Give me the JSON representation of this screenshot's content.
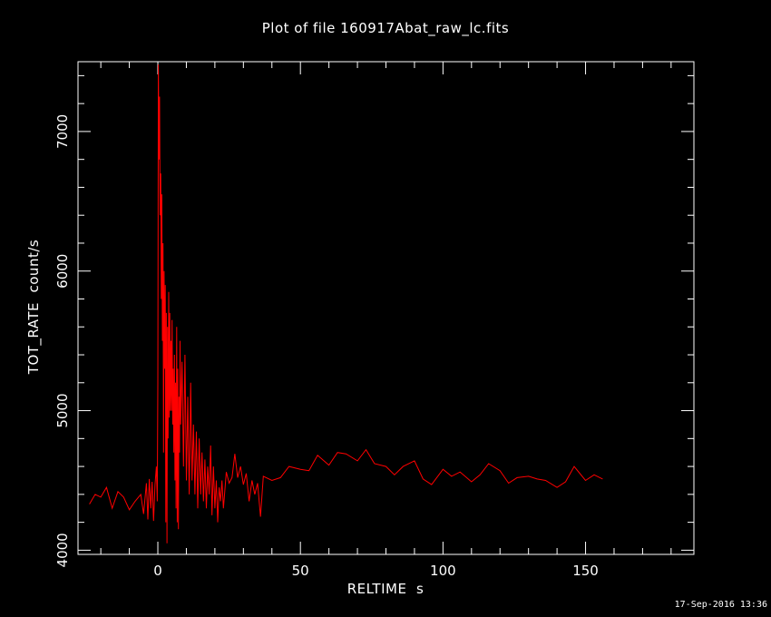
{
  "chart_data": {
    "type": "line",
    "title": "Plot of file 160917Abat_raw_lc.fits",
    "xlabel": "RELTIME  s",
    "ylabel": "TOT_RATE  count/s",
    "xlim": [
      -28,
      188
    ],
    "ylim": [
      3970,
      7500
    ],
    "x_ticks": [
      "0",
      "50",
      "100",
      "150"
    ],
    "y_ticks": [
      "4000",
      "5000",
      "6000",
      "7000"
    ],
    "line_color": "#ff0000",
    "series": [
      {
        "points": [
          [
            -24,
            4330
          ],
          [
            -22,
            4400
          ],
          [
            -20,
            4380
          ],
          [
            -18,
            4450
          ],
          [
            -16,
            4300
          ],
          [
            -14,
            4420
          ],
          [
            -12,
            4380
          ],
          [
            -10,
            4290
          ],
          [
            -8,
            4350
          ],
          [
            -6,
            4400
          ],
          [
            -5,
            4260
          ],
          [
            -4,
            4480
          ],
          [
            -3.5,
            4220
          ],
          [
            -3,
            4510
          ],
          [
            -2.5,
            4300
          ],
          [
            -2,
            4490
          ],
          [
            -1.5,
            4210
          ],
          [
            -1,
            4470
          ],
          [
            -0.5,
            4600
          ],
          [
            -0.2,
            4350
          ],
          [
            0,
            5200
          ],
          [
            0.2,
            7480
          ],
          [
            0.4,
            6800
          ],
          [
            0.6,
            7250
          ],
          [
            0.8,
            6400
          ],
          [
            1.0,
            6700
          ],
          [
            1.2,
            5800
          ],
          [
            1.4,
            6550
          ],
          [
            1.6,
            5500
          ],
          [
            1.8,
            6200
          ],
          [
            2.0,
            4700
          ],
          [
            2.2,
            6000
          ],
          [
            2.4,
            5300
          ],
          [
            2.6,
            5900
          ],
          [
            2.8,
            4200
          ],
          [
            3.0,
            5700
          ],
          [
            3.2,
            4050
          ],
          [
            3.4,
            5600
          ],
          [
            3.6,
            4800
          ],
          [
            3.8,
            5850
          ],
          [
            4.0,
            4950
          ],
          [
            4.2,
            5700
          ],
          [
            4.4,
            5000
          ],
          [
            4.6,
            5500
          ],
          [
            4.8,
            5000
          ],
          [
            5.0,
            5650
          ],
          [
            5.2,
            4900
          ],
          [
            5.4,
            5300
          ],
          [
            5.6,
            4700
          ],
          [
            5.8,
            5400
          ],
          [
            6.0,
            4500
          ],
          [
            6.2,
            5200
          ],
          [
            6.4,
            4300
          ],
          [
            6.6,
            5600
          ],
          [
            6.8,
            4200
          ],
          [
            7.0,
            5300
          ],
          [
            7.2,
            4150
          ],
          [
            7.4,
            5100
          ],
          [
            7.6,
            4700
          ],
          [
            7.8,
            5500
          ],
          [
            8.0,
            4900
          ],
          [
            8.5,
            5350
          ],
          [
            9.0,
            4600
          ],
          [
            9.5,
            5400
          ],
          [
            10.0,
            4500
          ],
          [
            10.5,
            5100
          ],
          [
            11.0,
            4400
          ],
          [
            11.5,
            5200
          ],
          [
            12.0,
            4500
          ],
          [
            12.5,
            4900
          ],
          [
            13.0,
            4400
          ],
          [
            13.5,
            4850
          ],
          [
            14.0,
            4300
          ],
          [
            14.5,
            4800
          ],
          [
            15.0,
            4400
          ],
          [
            15.5,
            4700
          ],
          [
            16.0,
            4350
          ],
          [
            16.5,
            4650
          ],
          [
            17.0,
            4300
          ],
          [
            17.5,
            4600
          ],
          [
            18.0,
            4400
          ],
          [
            18.5,
            4750
          ],
          [
            19.0,
            4250
          ],
          [
            19.5,
            4600
          ],
          [
            20.0,
            4300
          ],
          [
            20.5,
            4500
          ],
          [
            21.0,
            4200
          ],
          [
            21.5,
            4450
          ],
          [
            22.0,
            4350
          ],
          [
            22.5,
            4500
          ],
          [
            23.0,
            4300
          ],
          [
            24,
            4560
          ],
          [
            25,
            4480
          ],
          [
            26,
            4520
          ],
          [
            27,
            4690
          ],
          [
            28,
            4520
          ],
          [
            29,
            4600
          ],
          [
            30,
            4470
          ],
          [
            31,
            4550
          ],
          [
            32,
            4350
          ],
          [
            33,
            4500
          ],
          [
            34,
            4400
          ],
          [
            35,
            4480
          ],
          [
            36,
            4240
          ],
          [
            37,
            4530
          ],
          [
            40,
            4500
          ],
          [
            43,
            4520
          ],
          [
            46,
            4600
          ],
          [
            50,
            4580
          ],
          [
            53,
            4570
          ],
          [
            56,
            4680
          ],
          [
            60,
            4610
          ],
          [
            63,
            4700
          ],
          [
            66,
            4690
          ],
          [
            70,
            4640
          ],
          [
            73,
            4720
          ],
          [
            76,
            4620
          ],
          [
            80,
            4600
          ],
          [
            83,
            4540
          ],
          [
            86,
            4600
          ],
          [
            90,
            4640
          ],
          [
            93,
            4510
          ],
          [
            96,
            4470
          ],
          [
            100,
            4580
          ],
          [
            103,
            4530
          ],
          [
            106,
            4560
          ],
          [
            110,
            4490
          ],
          [
            113,
            4540
          ],
          [
            116,
            4620
          ],
          [
            120,
            4570
          ],
          [
            123,
            4480
          ],
          [
            126,
            4520
          ],
          [
            130,
            4530
          ],
          [
            133,
            4510
          ],
          [
            136,
            4500
          ],
          [
            140,
            4450
          ],
          [
            143,
            4490
          ],
          [
            146,
            4600
          ],
          [
            150,
            4500
          ],
          [
            153,
            4540
          ],
          [
            156,
            4510
          ]
        ]
      }
    ]
  },
  "timestamp": "17-Sep-2016 13:36"
}
